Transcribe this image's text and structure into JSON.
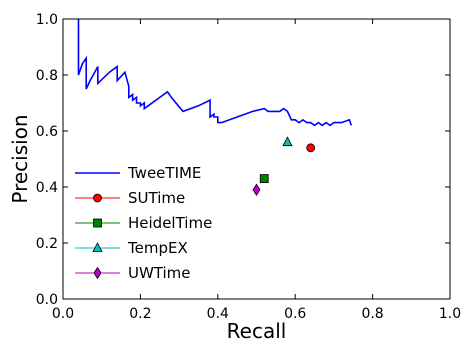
{
  "chart_data": {
    "type": "line",
    "title": "",
    "xlabel": "Recall",
    "ylabel": "Precision",
    "xlim": [
      0,
      1
    ],
    "ylim": [
      0,
      1
    ],
    "x_ticks": [
      "0.0",
      "0.2",
      "0.4",
      "0.6",
      "0.8",
      "1.0"
    ],
    "y_ticks": [
      "0.0",
      "0.2",
      "0.4",
      "0.6",
      "0.8",
      "1.0"
    ],
    "grid": false,
    "legend_position": "bottom-left",
    "series": [
      {
        "name": "TweeTIME",
        "type": "line",
        "color": "#0000ff",
        "points": [
          [
            0.04,
            1.0
          ],
          [
            0.04,
            0.8
          ],
          [
            0.05,
            0.84
          ],
          [
            0.06,
            0.86
          ],
          [
            0.06,
            0.75
          ],
          [
            0.07,
            0.78
          ],
          [
            0.09,
            0.83
          ],
          [
            0.09,
            0.77
          ],
          [
            0.12,
            0.81
          ],
          [
            0.14,
            0.83
          ],
          [
            0.14,
            0.78
          ],
          [
            0.16,
            0.81
          ],
          [
            0.17,
            0.76
          ],
          [
            0.17,
            0.72
          ],
          [
            0.18,
            0.73
          ],
          [
            0.18,
            0.71
          ],
          [
            0.19,
            0.72
          ],
          [
            0.19,
            0.7
          ],
          [
            0.2,
            0.7
          ],
          [
            0.2,
            0.69
          ],
          [
            0.21,
            0.7
          ],
          [
            0.21,
            0.68
          ],
          [
            0.22,
            0.69
          ],
          [
            0.25,
            0.72
          ],
          [
            0.27,
            0.74
          ],
          [
            0.28,
            0.72
          ],
          [
            0.31,
            0.67
          ],
          [
            0.35,
            0.69
          ],
          [
            0.38,
            0.71
          ],
          [
            0.38,
            0.65
          ],
          [
            0.39,
            0.66
          ],
          [
            0.39,
            0.65
          ],
          [
            0.4,
            0.65
          ],
          [
            0.4,
            0.63
          ],
          [
            0.41,
            0.63
          ],
          [
            0.45,
            0.65
          ],
          [
            0.49,
            0.67
          ],
          [
            0.52,
            0.68
          ],
          [
            0.53,
            0.67
          ],
          [
            0.56,
            0.67
          ],
          [
            0.57,
            0.68
          ],
          [
            0.58,
            0.67
          ],
          [
            0.59,
            0.64
          ],
          [
            0.6,
            0.64
          ],
          [
            0.61,
            0.63
          ],
          [
            0.62,
            0.64
          ],
          [
            0.63,
            0.63
          ],
          [
            0.64,
            0.63
          ],
          [
            0.65,
            0.62
          ],
          [
            0.66,
            0.63
          ],
          [
            0.67,
            0.62
          ],
          [
            0.68,
            0.63
          ],
          [
            0.69,
            0.62
          ],
          [
            0.7,
            0.63
          ],
          [
            0.72,
            0.63
          ],
          [
            0.74,
            0.64
          ],
          [
            0.745,
            0.62
          ]
        ]
      },
      {
        "name": "SUTime",
        "type": "marker",
        "marker": "circle",
        "color": "#ff0000",
        "x": 0.64,
        "y": 0.54
      },
      {
        "name": "HeidelTime",
        "type": "marker",
        "marker": "square",
        "color": "#008000",
        "x": 0.52,
        "y": 0.43
      },
      {
        "name": "TempEX",
        "type": "marker",
        "marker": "triangle",
        "color": "#00bfbf",
        "x": 0.58,
        "y": 0.56
      },
      {
        "name": "UWTime",
        "type": "marker",
        "marker": "diamond",
        "color": "#bf00bf",
        "x": 0.5,
        "y": 0.39
      }
    ]
  }
}
